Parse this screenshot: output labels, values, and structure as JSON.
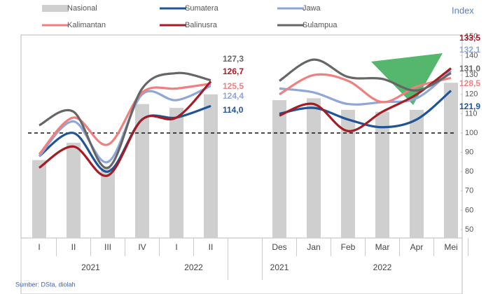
{
  "chart_data": {
    "type": "bar_line",
    "axis_label": "Index",
    "source": "Sumber: DSta, diolah",
    "categories": [
      "I",
      "II",
      "III",
      "IV",
      "I",
      "II",
      null,
      "Des",
      "Jan",
      "Feb",
      "Mar",
      "Apr",
      "Mei"
    ],
    "x_groups": [
      "2021",
      "2022",
      "2021",
      "2022"
    ],
    "ylim": [
      50,
      150
    ],
    "yticks": [
      50,
      60,
      70,
      80,
      90,
      100,
      110,
      120,
      130,
      140,
      150
    ],
    "reference_line": 100,
    "series": [
      {
        "name": "Nasional",
        "type": "bar",
        "color": "#cfcfcf",
        "values": [
          86,
          95,
          82,
          115,
          113,
          120,
          null,
          117,
          118,
          112,
          111,
          112,
          126
        ]
      },
      {
        "name": "Sumatera",
        "type": "line",
        "color": "#1f5496",
        "values": [
          88,
          100,
          80,
          107,
          108,
          114.0,
          null,
          110,
          113,
          107,
          103,
          107,
          121.9
        ],
        "value_labels": [
          null,
          null,
          null,
          null,
          null,
          "114,0",
          null,
          null,
          null,
          null,
          null,
          null,
          "121,9"
        ]
      },
      {
        "name": "Jawa",
        "type": "line",
        "color": "#8ea6d8",
        "values": [
          88,
          106,
          85,
          120,
          117,
          124.4,
          null,
          123,
          121,
          115,
          116,
          118,
          132.1
        ],
        "value_labels": [
          null,
          null,
          null,
          null,
          null,
          "124,4",
          null,
          null,
          null,
          null,
          null,
          null,
          "132,1"
        ]
      },
      {
        "name": "Kalimantan",
        "type": "line",
        "color": "#f08080",
        "values": [
          89,
          108,
          94,
          121,
          123,
          125.5,
          null,
          120,
          130,
          127,
          116,
          124,
          128.5
        ],
        "value_labels": [
          null,
          null,
          null,
          null,
          null,
          "125,5",
          null,
          null,
          null,
          null,
          null,
          null,
          "128,5"
        ]
      },
      {
        "name": "Balinusra",
        "type": "line",
        "color": "#a51c24",
        "values": [
          82,
          93,
          78,
          107,
          108,
          126.7,
          null,
          109,
          115,
          101,
          111,
          120,
          133.5
        ],
        "value_labels": [
          null,
          null,
          null,
          null,
          null,
          "126,7",
          null,
          null,
          null,
          null,
          null,
          null,
          "133,5"
        ]
      },
      {
        "name": "Sulampua",
        "type": "line",
        "color": "#666666",
        "values": [
          104,
          111,
          82,
          123,
          131,
          127.3,
          null,
          127,
          138,
          129,
          128,
          122,
          131.0
        ],
        "value_labels": [
          null,
          null,
          null,
          null,
          null,
          "127,3",
          null,
          null,
          null,
          null,
          null,
          null,
          "131,0"
        ]
      }
    ]
  }
}
